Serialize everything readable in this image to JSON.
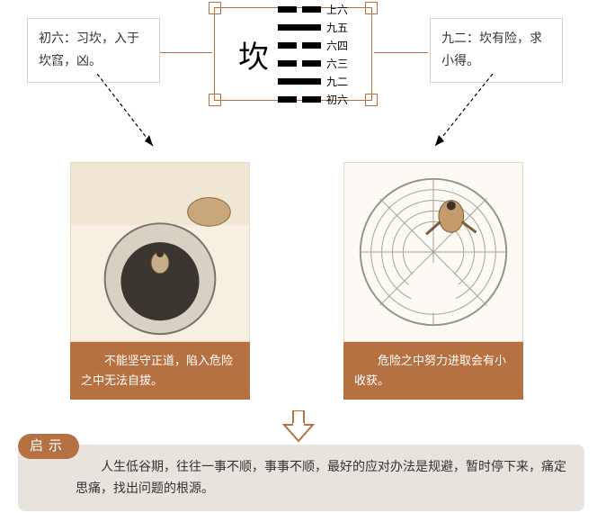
{
  "colors": {
    "rust": "#b57141",
    "rust_dark": "#a66538",
    "pale_border": "#e8d9c8",
    "box_border": "#d9cfc3",
    "qishi_bg": "#e8e3dc",
    "ink": "#000000",
    "text": "#333333"
  },
  "left_box": {
    "text": "初六：习坎，入于坎窞，凶。"
  },
  "right_box": {
    "text": "九二：坎有险，求小得。"
  },
  "hexagram": {
    "char": "坎",
    "line_labels": [
      "上六",
      "九五",
      "六四",
      "六三",
      "九二",
      "初六"
    ],
    "pattern": [
      "broken",
      "solid",
      "broken",
      "broken",
      "solid",
      "broken"
    ]
  },
  "card_left": {
    "caption": "不能坚守正道，陷入危险之中无法自拔。"
  },
  "card_right": {
    "caption": "危险之中努力进取会有小收获。"
  },
  "qishi": {
    "badge": "启示",
    "body": "人生低谷期，往往一事不顺，事事不顺，最好的应对办法是规避，暂时停下来，痛定思痛，找出问题的根源。"
  }
}
